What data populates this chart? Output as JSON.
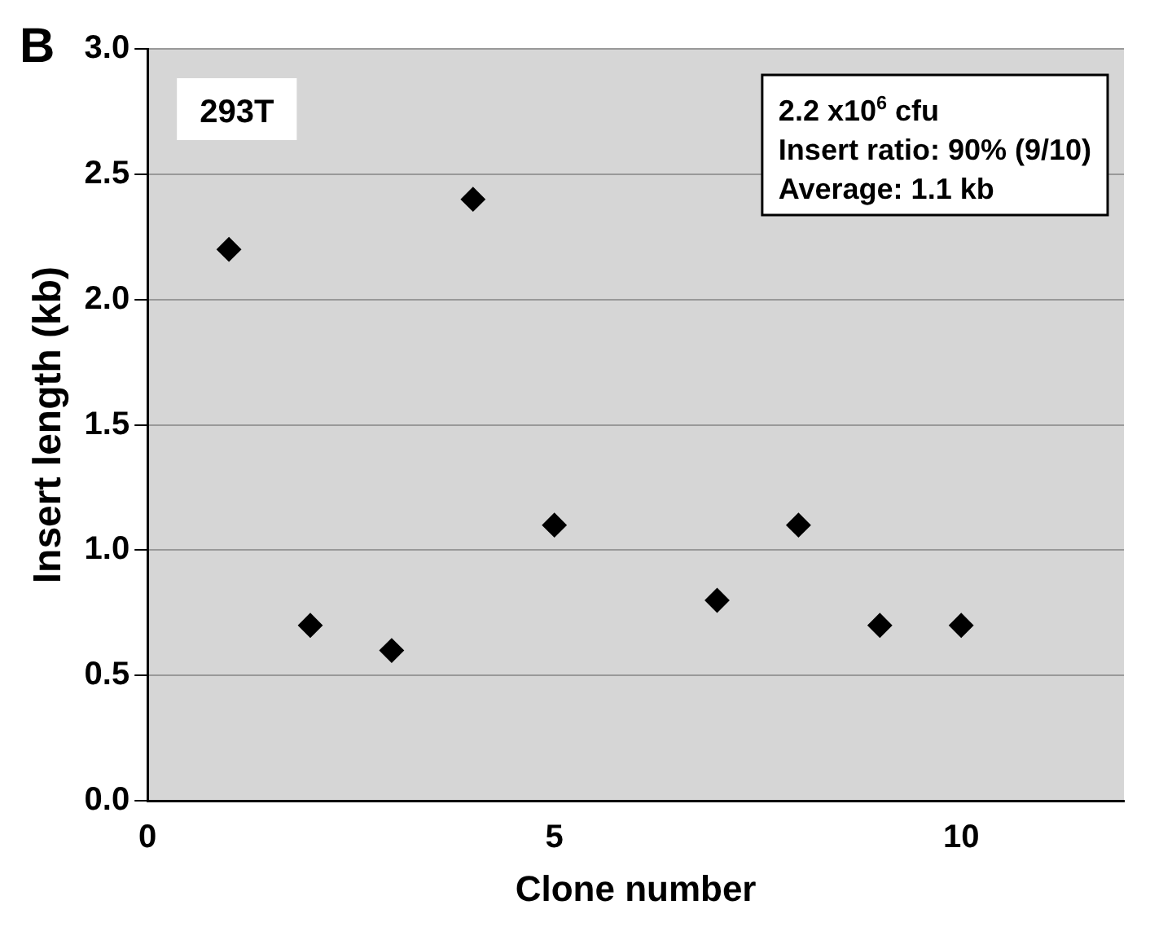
{
  "chart_data": {
    "type": "scatter",
    "xlabel": "Clone number",
    "ylabel": "Insert length (kb)",
    "x": [
      1,
      2,
      3,
      4,
      5,
      7,
      8,
      9,
      10
    ],
    "values": [
      2.2,
      0.7,
      0.6,
      2.4,
      1.1,
      0.8,
      1.1,
      0.7,
      0.7
    ],
    "color": "#000000",
    "marker": "diamond",
    "xlim": [
      0,
      12
    ],
    "xticks": [
      0,
      5,
      10
    ],
    "ylim": [
      0,
      3
    ],
    "yticks": [
      {
        "value": 0,
        "label": "0.0"
      },
      0.5,
      {
        "value": 1,
        "label": "1.0"
      },
      1.5,
      {
        "value": 2,
        "label": "2.0"
      },
      2.5,
      {
        "value": 3,
        "label": "3.0"
      }
    ],
    "grid": "y",
    "legend": false,
    "annotations": [
      "B",
      "293T",
      "2.2 x10$^{6}$ cfu",
      "Insert ratio: 90% (9/10)",
      "Average: 1.1 kb"
    ]
  }
}
